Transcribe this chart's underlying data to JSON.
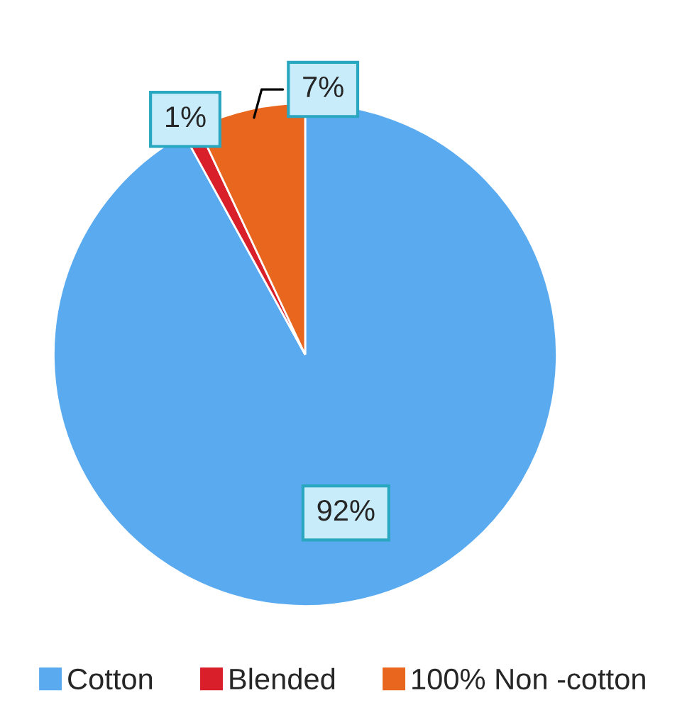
{
  "chart_data": {
    "type": "pie",
    "categories": [
      "Cotton",
      "Blended",
      "100% Non -cotton"
    ],
    "values": [
      92,
      1,
      7
    ],
    "colors": [
      "#5aaaf0",
      "#d9202a",
      "#e8661e"
    ],
    "value_labels": [
      "92%",
      "1%",
      "7%"
    ],
    "legend": "bottom"
  }
}
